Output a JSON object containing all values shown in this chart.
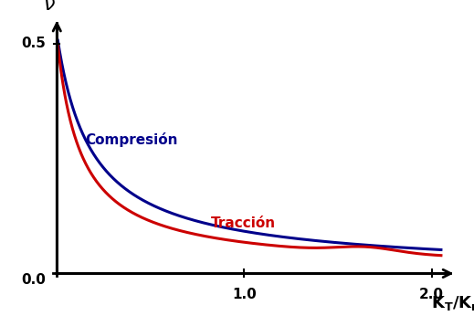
{
  "title": "",
  "xlim": [
    0.0,
    2.15
  ],
  "ylim": [
    -0.01,
    0.56
  ],
  "xticks": [
    1.0,
    2.0
  ],
  "yticks": [
    0.5
  ],
  "xticklabels": [
    "1.0",
    "2.0"
  ],
  "yticklabels": [
    "0.5"
  ],
  "x0label": "0.0",
  "compresion_color": "#00008B",
  "traccion_color": "#CC0000",
  "compresion_label": "Compresión",
  "traccion_label": "Tracción",
  "label_fontsize": 11,
  "axis_label_fontsize": 13,
  "tick_fontsize": 11,
  "background_color": "#FFFFFF",
  "curve_linewidth": 2.2
}
